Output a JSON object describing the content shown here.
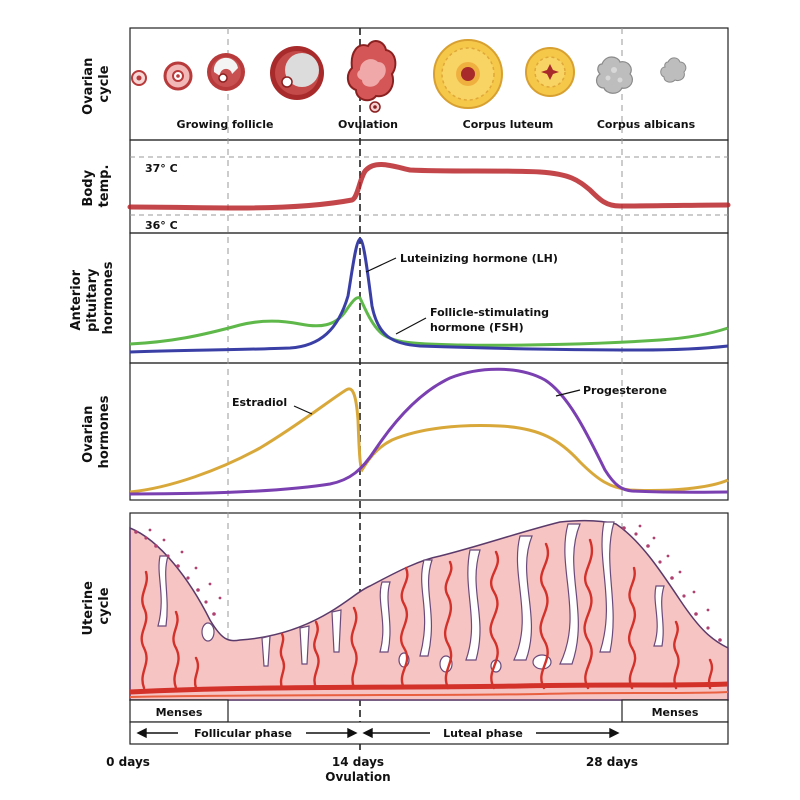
{
  "rows": {
    "ovarian_cycle": [
      "Ovarian",
      "cycle"
    ],
    "body_temp": [
      "Body",
      "temp."
    ],
    "pituitary": [
      "Anterior",
      "pituitary",
      "hormones"
    ],
    "ovarian_hormones": [
      "Ovarian",
      "hormones"
    ],
    "uterine": [
      "Uterine",
      "cycle"
    ]
  },
  "ovarian_stages": {
    "growing_follicle": "Growing follicle",
    "ovulation": "Ovulation",
    "corpus_luteum": "Corpus luteum",
    "corpus_albicans": "Corpus albicans"
  },
  "temp": {
    "high": "37° C",
    "low": "36° C"
  },
  "hormones": {
    "lh": "Luteinizing hormone (LH)",
    "fsh_line1": "Follicle-stimulating",
    "fsh_line2": "hormone (FSH)",
    "estradiol": "Estradiol",
    "progesterone": "Progesterone"
  },
  "phases": {
    "menses": "Menses",
    "follicular": "Follicular phase",
    "luteal": "Luteal phase"
  },
  "axis": {
    "day0": "0 days",
    "day14": "14 days",
    "day14_sub": "Ovulation",
    "day28": "28 days"
  },
  "colors": {
    "temp_line": "#b8262a",
    "lh": "#3a3fa6",
    "fsh": "#5fb84a",
    "estradiol": "#d9a83a",
    "progesterone": "#7a3fb0",
    "endometrium": "#f7c4c4",
    "vessel": "#d2322a",
    "follicle": "#b83a3a",
    "luteum": "#f5c84a"
  }
}
